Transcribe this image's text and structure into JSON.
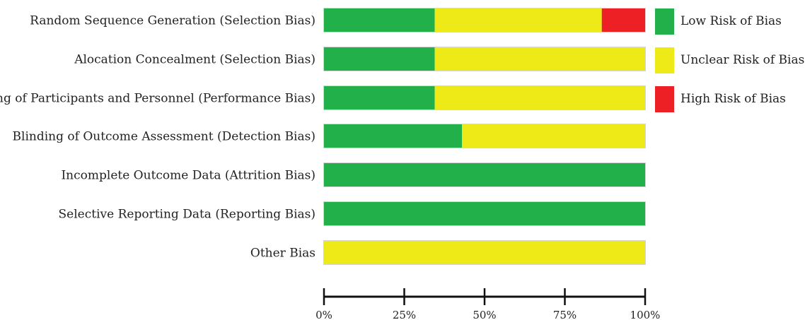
{
  "chart_data": {
    "type": "bar",
    "orientation": "horizontal",
    "stacked": true,
    "title": "",
    "xlabel": "",
    "ylabel": "",
    "categories": [
      "Random Sequence Generation (Selection Bias)",
      "Alocation Concealment (Selection Bias)",
      "Blinding of Participants and Personnel (Performance Bias)",
      "Blinding of Outcome Assessment (Detection Bias)",
      "Incomplete Outcome Data (Attrition Bias)",
      "Selective Reporting Data (Reporting Bias)",
      "Other Bias"
    ],
    "series": [
      {
        "name": "Low Risk of Bias",
        "color": "#22b04b",
        "values": [
          34.5,
          34.5,
          34.5,
          43,
          100,
          100,
          0
        ]
      },
      {
        "name": "Unclear Risk of Bias",
        "color": "#eeea17",
        "values": [
          52,
          65.5,
          65.5,
          57,
          0,
          0,
          100
        ]
      },
      {
        "name": "High Risk of Bias",
        "color": "#ec2025",
        "values": [
          13.5,
          0,
          0,
          0,
          0,
          0,
          0
        ]
      }
    ],
    "x_ticks": [
      "0%",
      "25%",
      "50%",
      "75%",
      "100%"
    ],
    "xlim": [
      0,
      100
    ],
    "grid": false,
    "legend_position": "right"
  }
}
